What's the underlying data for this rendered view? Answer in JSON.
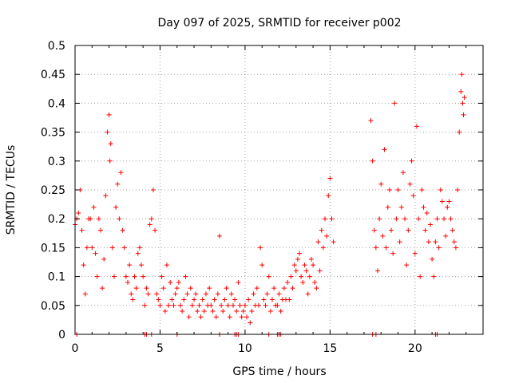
{
  "chart_data": {
    "type": "scatter",
    "title": "Day 097 of 2025, SRMTID for receiver p002",
    "xlabel": "GPS time / hours",
    "ylabel": "SRMTID / TECUs",
    "xlim": [
      0,
      24
    ],
    "ylim": [
      0,
      0.5
    ],
    "x_ticks": [
      0,
      5,
      10,
      15,
      20
    ],
    "x_tick_labels": [
      "0",
      "5",
      "10",
      "15",
      "20"
    ],
    "y_ticks": [
      0,
      0.05,
      0.1,
      0.15,
      0.2,
      0.25,
      0.3,
      0.35,
      0.4,
      0.45,
      0.5
    ],
    "y_tick_labels": [
      "0",
      "0.05",
      "0.1",
      "0.15",
      "0.2",
      "0.25",
      "0.3",
      "0.35",
      "0.4",
      "0.45",
      "0.5"
    ],
    "grid": true,
    "marker": "+",
    "color": "#ff0000",
    "series": [
      {
        "name": "SRMTID",
        "points": [
          [
            0.0,
            0.19
          ],
          [
            0.1,
            0.2
          ],
          [
            0.2,
            0.21
          ],
          [
            0.3,
            0.25
          ],
          [
            0.4,
            0.18
          ],
          [
            0.5,
            0.12
          ],
          [
            0.6,
            0.07
          ],
          [
            0.7,
            0.15
          ],
          [
            0.8,
            0.2
          ],
          [
            0.9,
            0.2
          ],
          [
            1.0,
            0.15
          ],
          [
            1.1,
            0.22
          ],
          [
            1.2,
            0.14
          ],
          [
            1.3,
            0.1
          ],
          [
            1.4,
            0.2
          ],
          [
            1.5,
            0.18
          ],
          [
            1.6,
            0.08
          ],
          [
            1.7,
            0.13
          ],
          [
            1.8,
            0.24
          ],
          [
            1.9,
            0.35
          ],
          [
            2.0,
            0.38
          ],
          [
            2.05,
            0.3
          ],
          [
            2.1,
            0.33
          ],
          [
            2.2,
            0.15
          ],
          [
            2.3,
            0.1
          ],
          [
            2.4,
            0.22
          ],
          [
            2.5,
            0.26
          ],
          [
            2.6,
            0.2
          ],
          [
            2.7,
            0.28
          ],
          [
            2.8,
            0.18
          ],
          [
            2.9,
            0.15
          ],
          [
            3.0,
            0.1
          ],
          [
            3.1,
            0.09
          ],
          [
            3.2,
            0.12
          ],
          [
            3.3,
            0.07
          ],
          [
            3.4,
            0.06
          ],
          [
            3.5,
            0.1
          ],
          [
            3.6,
            0.08
          ],
          [
            3.7,
            0.14
          ],
          [
            3.8,
            0.15
          ],
          [
            3.9,
            0.12
          ],
          [
            4.0,
            0.1
          ],
          [
            4.1,
            0.05
          ],
          [
            4.2,
            0.08
          ],
          [
            4.3,
            0.07
          ],
          [
            4.4,
            0.19
          ],
          [
            4.5,
            0.2
          ],
          [
            4.6,
            0.25
          ],
          [
            4.7,
            0.18
          ],
          [
            4.8,
            0.07
          ],
          [
            4.9,
            0.06
          ],
          [
            5.0,
            0.05
          ],
          [
            5.1,
            0.1
          ],
          [
            5.2,
            0.08
          ],
          [
            5.3,
            0.04
          ],
          [
            5.4,
            0.12
          ],
          [
            5.5,
            0.05
          ],
          [
            5.6,
            0.09
          ],
          [
            5.7,
            0.06
          ],
          [
            5.8,
            0.05
          ],
          [
            5.9,
            0.07
          ],
          [
            6.0,
            0.08
          ],
          [
            6.1,
            0.09
          ],
          [
            6.2,
            0.05
          ],
          [
            6.3,
            0.04
          ],
          [
            6.4,
            0.06
          ],
          [
            6.5,
            0.1
          ],
          [
            6.6,
            0.07
          ],
          [
            6.7,
            0.03
          ],
          [
            6.8,
            0.08
          ],
          [
            6.9,
            0.05
          ],
          [
            7.0,
            0.06
          ],
          [
            7.1,
            0.07
          ],
          [
            7.2,
            0.04
          ],
          [
            7.3,
            0.05
          ],
          [
            7.4,
            0.03
          ],
          [
            7.5,
            0.06
          ],
          [
            7.6,
            0.04
          ],
          [
            7.7,
            0.07
          ],
          [
            7.8,
            0.05
          ],
          [
            7.9,
            0.08
          ],
          [
            8.0,
            0.05
          ],
          [
            8.1,
            0.04
          ],
          [
            8.2,
            0.06
          ],
          [
            8.3,
            0.03
          ],
          [
            8.4,
            0.07
          ],
          [
            8.5,
            0.17
          ],
          [
            8.6,
            0.05
          ],
          [
            8.7,
            0.04
          ],
          [
            8.8,
            0.06
          ],
          [
            8.9,
            0.08
          ],
          [
            9.0,
            0.05
          ],
          [
            9.1,
            0.03
          ],
          [
            9.2,
            0.07
          ],
          [
            9.3,
            0.05
          ],
          [
            9.4,
            0.06
          ],
          [
            9.5,
            0.04
          ],
          [
            9.6,
            0.09
          ],
          [
            9.7,
            0.05
          ],
          [
            9.8,
            0.03
          ],
          [
            9.9,
            0.04
          ],
          [
            10.0,
            0.05
          ],
          [
            10.1,
            0.03
          ],
          [
            10.2,
            0.06
          ],
          [
            10.3,
            0.02
          ],
          [
            10.4,
            0.04
          ],
          [
            10.5,
            0.07
          ],
          [
            10.6,
            0.05
          ],
          [
            10.7,
            0.08
          ],
          [
            10.8,
            0.05
          ],
          [
            10.9,
            0.15
          ],
          [
            11.0,
            0.12
          ],
          [
            11.1,
            0.06
          ],
          [
            11.2,
            0.05
          ],
          [
            11.3,
            0.07
          ],
          [
            11.4,
            0.1
          ],
          [
            11.5,
            0.04
          ],
          [
            11.6,
            0.06
          ],
          [
            11.7,
            0.08
          ],
          [
            11.8,
            0.05
          ],
          [
            11.9,
            0.05
          ],
          [
            12.0,
            0.07
          ],
          [
            12.1,
            0.04
          ],
          [
            12.2,
            0.06
          ],
          [
            12.3,
            0.08
          ],
          [
            12.4,
            0.06
          ],
          [
            12.5,
            0.09
          ],
          [
            12.6,
            0.06
          ],
          [
            12.7,
            0.1
          ],
          [
            12.8,
            0.08
          ],
          [
            12.9,
            0.12
          ],
          [
            13.0,
            0.11
          ],
          [
            13.1,
            0.13
          ],
          [
            13.2,
            0.14
          ],
          [
            13.3,
            0.1
          ],
          [
            13.4,
            0.09
          ],
          [
            13.5,
            0.12
          ],
          [
            13.6,
            0.11
          ],
          [
            13.7,
            0.07
          ],
          [
            13.8,
            0.1
          ],
          [
            13.9,
            0.13
          ],
          [
            14.0,
            0.12
          ],
          [
            14.1,
            0.09
          ],
          [
            14.2,
            0.08
          ],
          [
            14.3,
            0.16
          ],
          [
            14.4,
            0.11
          ],
          [
            14.5,
            0.18
          ],
          [
            14.6,
            0.15
          ],
          [
            14.7,
            0.2
          ],
          [
            14.8,
            0.17
          ],
          [
            14.9,
            0.24
          ],
          [
            15.0,
            0.27
          ],
          [
            15.1,
            0.2
          ],
          [
            15.2,
            0.16
          ],
          [
            17.4,
            0.37
          ],
          [
            17.5,
            0.3
          ],
          [
            17.6,
            0.18
          ],
          [
            17.7,
            0.15
          ],
          [
            17.8,
            0.11
          ],
          [
            17.9,
            0.2
          ],
          [
            18.0,
            0.26
          ],
          [
            18.1,
            0.17
          ],
          [
            18.2,
            0.32
          ],
          [
            18.3,
            0.15
          ],
          [
            18.4,
            0.22
          ],
          [
            18.5,
            0.25
          ],
          [
            18.6,
            0.18
          ],
          [
            18.7,
            0.14
          ],
          [
            18.8,
            0.4
          ],
          [
            18.9,
            0.2
          ],
          [
            19.0,
            0.25
          ],
          [
            19.1,
            0.16
          ],
          [
            19.2,
            0.22
          ],
          [
            19.3,
            0.28
          ],
          [
            19.4,
            0.2
          ],
          [
            19.5,
            0.12
          ],
          [
            19.6,
            0.18
          ],
          [
            19.7,
            0.26
          ],
          [
            19.8,
            0.3
          ],
          [
            19.9,
            0.24
          ],
          [
            20.0,
            0.14
          ],
          [
            20.1,
            0.36
          ],
          [
            20.2,
            0.2
          ],
          [
            20.3,
            0.1
          ],
          [
            20.4,
            0.25
          ],
          [
            20.5,
            0.22
          ],
          [
            20.6,
            0.18
          ],
          [
            20.7,
            0.21
          ],
          [
            20.8,
            0.16
          ],
          [
            20.9,
            0.19
          ],
          [
            21.0,
            0.13
          ],
          [
            21.1,
            0.1
          ],
          [
            21.2,
            0.16
          ],
          [
            21.3,
            0.2
          ],
          [
            21.4,
            0.15
          ],
          [
            21.5,
            0.25
          ],
          [
            21.6,
            0.23
          ],
          [
            21.7,
            0.2
          ],
          [
            21.8,
            0.17
          ],
          [
            21.9,
            0.22
          ],
          [
            22.0,
            0.23
          ],
          [
            22.1,
            0.2
          ],
          [
            22.2,
            0.18
          ],
          [
            22.3,
            0.16
          ],
          [
            22.4,
            0.15
          ],
          [
            22.5,
            0.25
          ],
          [
            22.6,
            0.35
          ],
          [
            22.7,
            0.42
          ],
          [
            22.75,
            0.45
          ],
          [
            22.8,
            0.4
          ],
          [
            22.85,
            0.38
          ],
          [
            22.9,
            0.41
          ]
        ]
      }
    ],
    "zero_points_x": [
      0.1,
      4.1,
      4.2,
      4.5,
      6.0,
      8.5,
      9.4,
      9.5,
      9.6,
      11.4,
      11.9,
      12.0,
      12.1,
      17.5,
      17.7,
      21.2,
      21.3
    ]
  }
}
